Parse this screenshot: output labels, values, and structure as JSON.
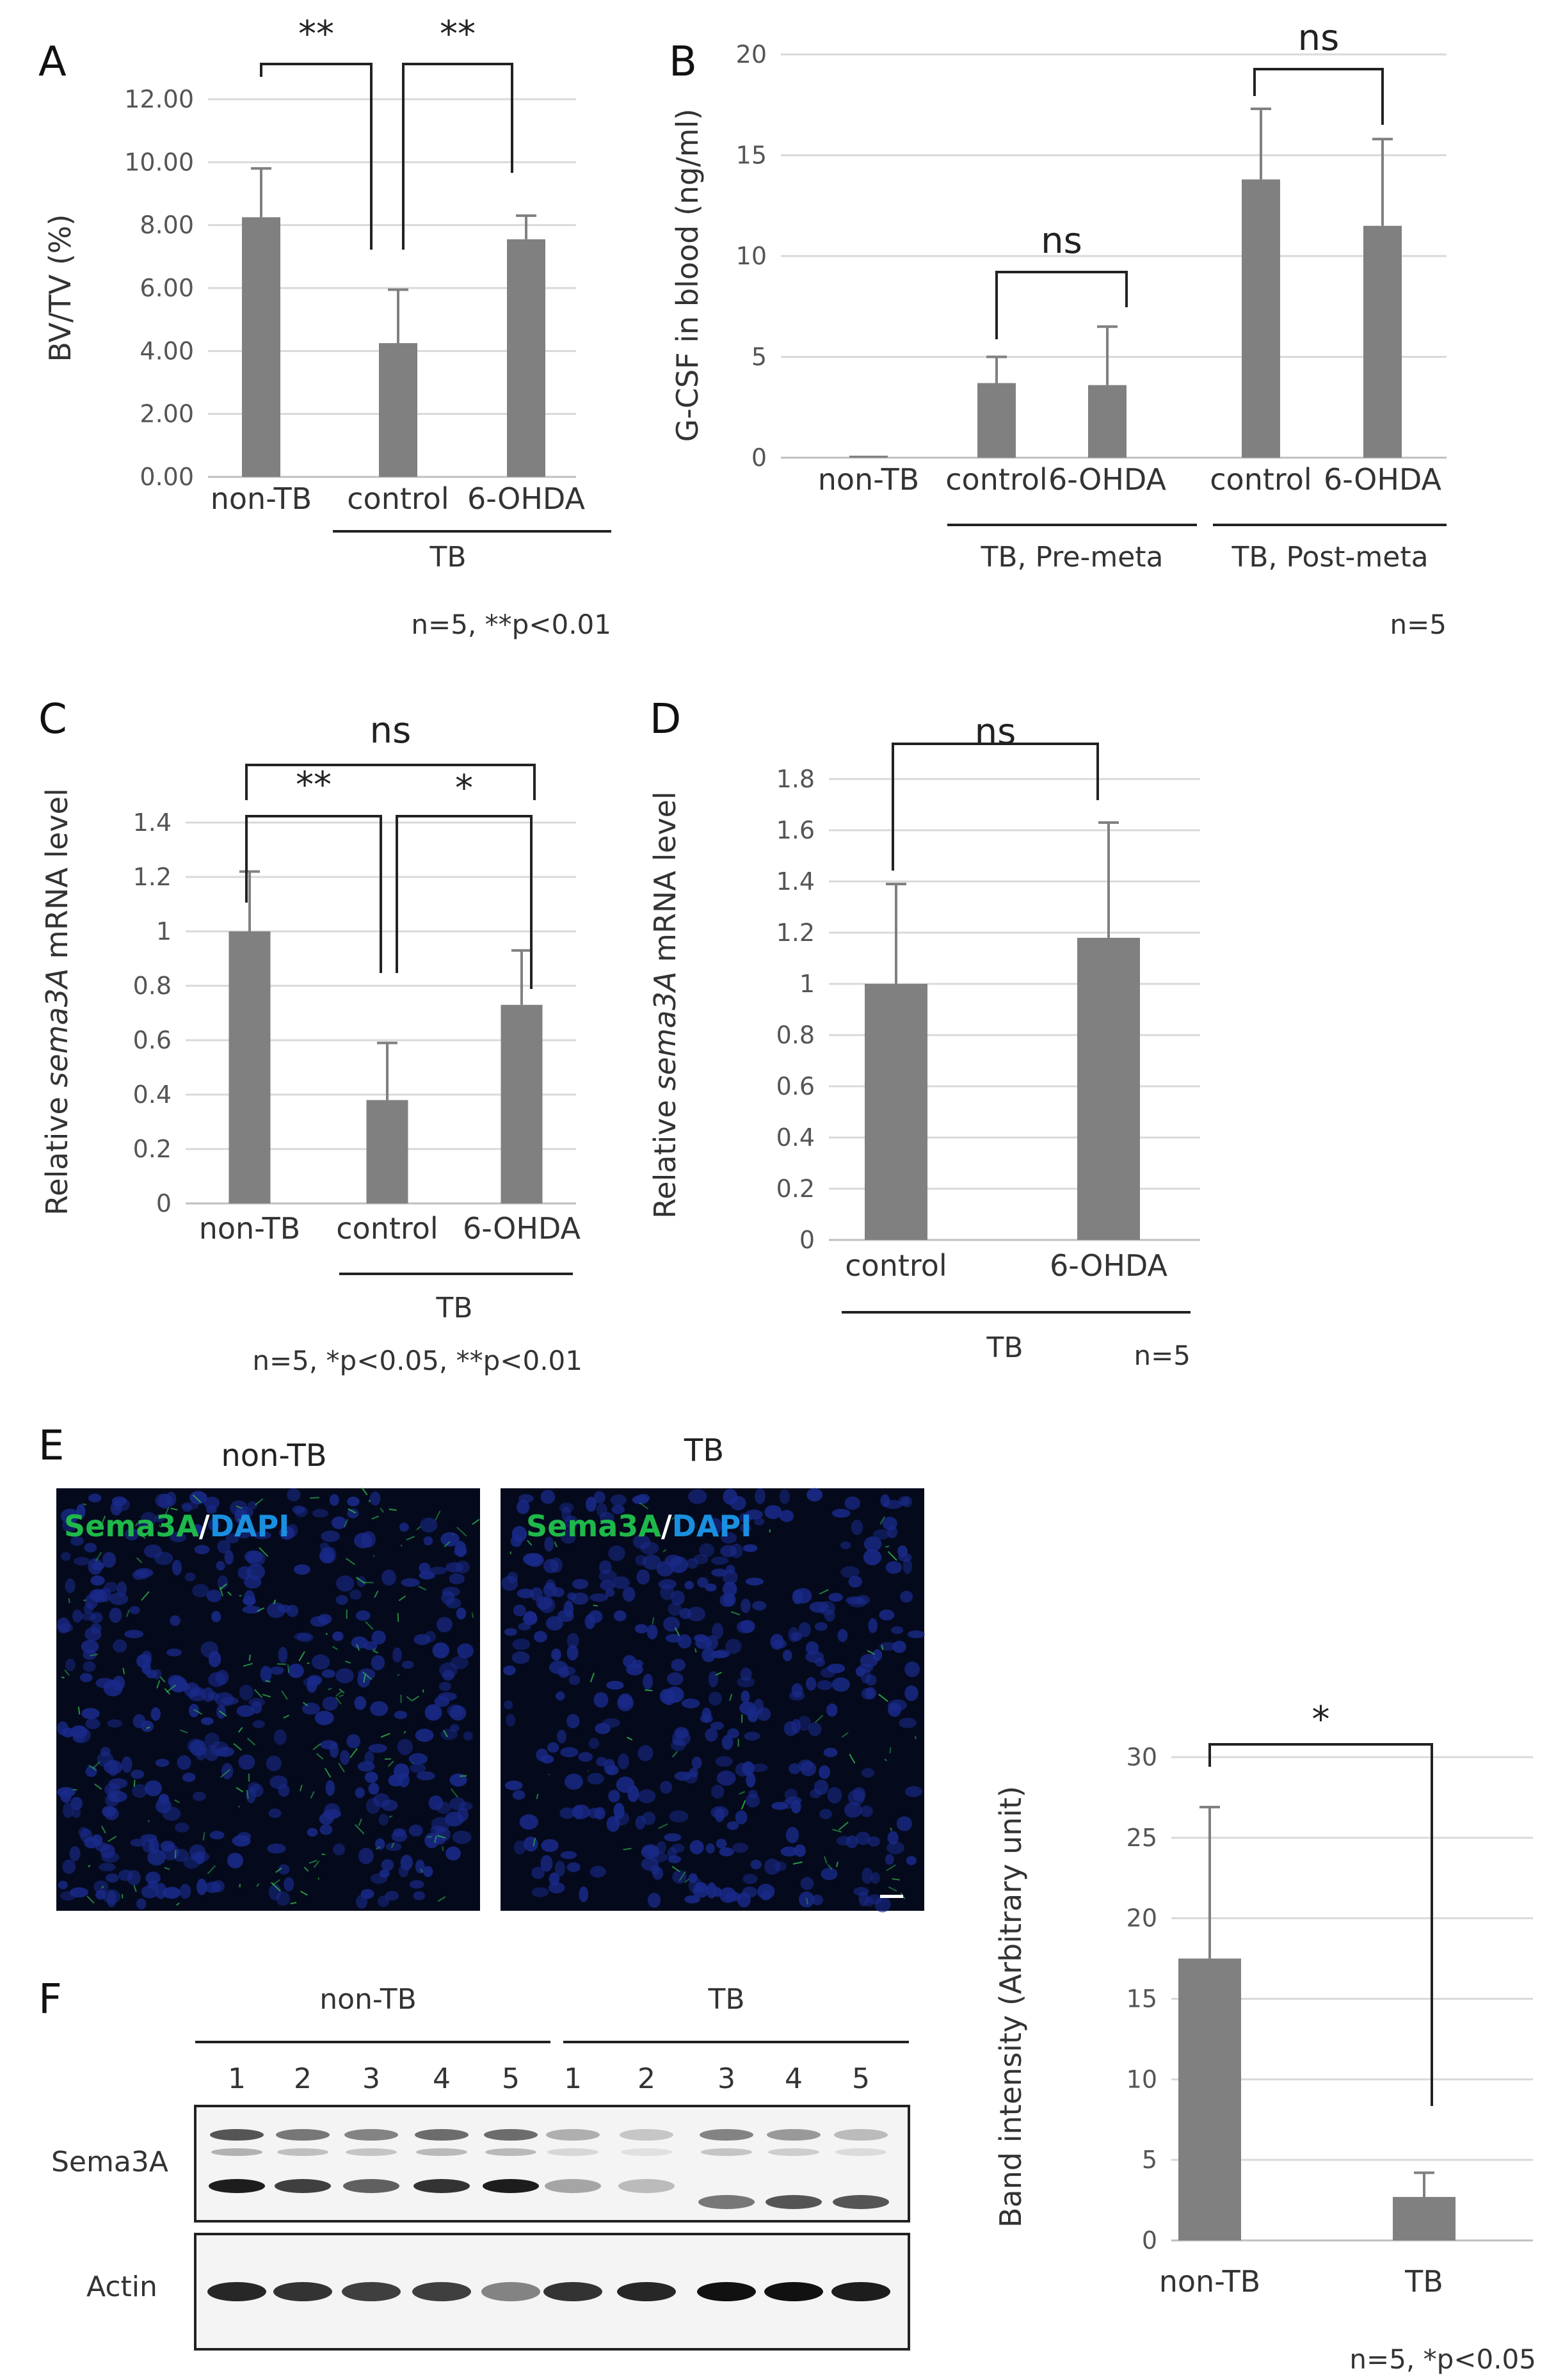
{
  "panels": {
    "A": {
      "letter": "A",
      "footnote": "n=5, **p<0.01"
    },
    "B": {
      "letter": "B",
      "footnote": "n=5"
    },
    "C": {
      "letter": "C",
      "footnote": "n=5, *p<0.05, **p<0.01"
    },
    "D": {
      "letter": "D",
      "footnote": "n=5"
    },
    "E": {
      "letter": "E",
      "footnote": "n=5, *p<0.05",
      "micrographs": [
        {
          "title": "non-TB",
          "stain1": "Sema3A",
          "sep": "/",
          "stain2": "DAPI"
        },
        {
          "title": "TB",
          "stain1": "Sema3A",
          "sep": "/",
          "stain2": "DAPI"
        }
      ]
    },
    "F": {
      "letter": "F",
      "groups": [
        "non-TB",
        "TB"
      ],
      "lanes": [
        "1",
        "2",
        "3",
        "4",
        "5",
        "1",
        "2",
        "3",
        "4",
        "5"
      ],
      "rows": [
        "Sema3A",
        "Actin"
      ]
    }
  },
  "colors": {
    "bar": "#808080",
    "errorbar": "#808080",
    "bracket": "#222222",
    "grid": "#d9d9d9",
    "green": "#1fb84a",
    "blue": "#1a8fe0"
  },
  "chart_data": [
    {
      "panel": "A",
      "type": "bar",
      "categories": [
        "non-TB",
        "control",
        "6-OHDA"
      ],
      "values": [
        8.25,
        4.25,
        7.55
      ],
      "errors": [
        1.55,
        1.7,
        0.75
      ],
      "ylabel": "BV/TV (%)",
      "ylim": [
        0,
        12
      ],
      "yticks": [
        "0.00",
        "2.00",
        "4.00",
        "6.00",
        "8.00",
        "10.00",
        "12.00"
      ],
      "group_labels": [
        "TB"
      ],
      "significance": [
        "**",
        "**"
      ]
    },
    {
      "panel": "B",
      "type": "bar",
      "categories": [
        "non-TB",
        "control",
        "6-OHDA",
        "control",
        "6-OHDA"
      ],
      "values": [
        0.1,
        3.7,
        3.6,
        13.8,
        11.5
      ],
      "errors": [
        0,
        1.3,
        2.9,
        3.5,
        4.3
      ],
      "ylabel": "G-CSF in blood (ng/ml)",
      "ylim": [
        0,
        20
      ],
      "yticks": [
        "0",
        "5",
        "10",
        "15",
        "20"
      ],
      "group_labels": [
        "TB, Pre-meta",
        "TB, Post-meta"
      ],
      "significance": [
        "ns",
        "ns"
      ]
    },
    {
      "panel": "C",
      "type": "bar",
      "categories": [
        "non-TB",
        "control",
        "6-OHDA"
      ],
      "values": [
        1.0,
        0.38,
        0.73
      ],
      "errors": [
        0.22,
        0.21,
        0.2
      ],
      "ylabel_parts": [
        "Relative ",
        "sema3A",
        " mRNA level"
      ],
      "ylim": [
        0,
        1.4
      ],
      "yticks": [
        "0",
        "0.2",
        "0.4",
        "0.6",
        "0.8",
        "1",
        "1.2",
        "1.4"
      ],
      "group_labels": [
        "TB"
      ],
      "significance": [
        "ns",
        "**",
        "*"
      ]
    },
    {
      "panel": "D",
      "type": "bar",
      "categories": [
        "control",
        "6-OHDA"
      ],
      "values": [
        1.0,
        1.18
      ],
      "errors": [
        0.39,
        0.45
      ],
      "ylabel_parts": [
        "Relative ",
        "sema3A",
        " mRNA level"
      ],
      "ylim": [
        0,
        1.8
      ],
      "yticks": [
        "0",
        "0.2",
        "0.4",
        "0.6",
        "0.8",
        "1",
        "1.2",
        "1.4",
        "1.6",
        "1.8"
      ],
      "group_labels": [
        "TB"
      ],
      "significance": [
        "ns"
      ]
    },
    {
      "panel": "E-quant",
      "type": "bar",
      "categories": [
        "non-TB",
        "TB"
      ],
      "values": [
        17.5,
        2.7
      ],
      "errors": [
        9.4,
        1.5
      ],
      "ylabel": "Band intensity (Arbitrary unit)",
      "ylim": [
        0,
        30
      ],
      "yticks": [
        "0",
        "5",
        "10",
        "15",
        "20",
        "25",
        "30"
      ],
      "significance": [
        "*"
      ]
    }
  ]
}
